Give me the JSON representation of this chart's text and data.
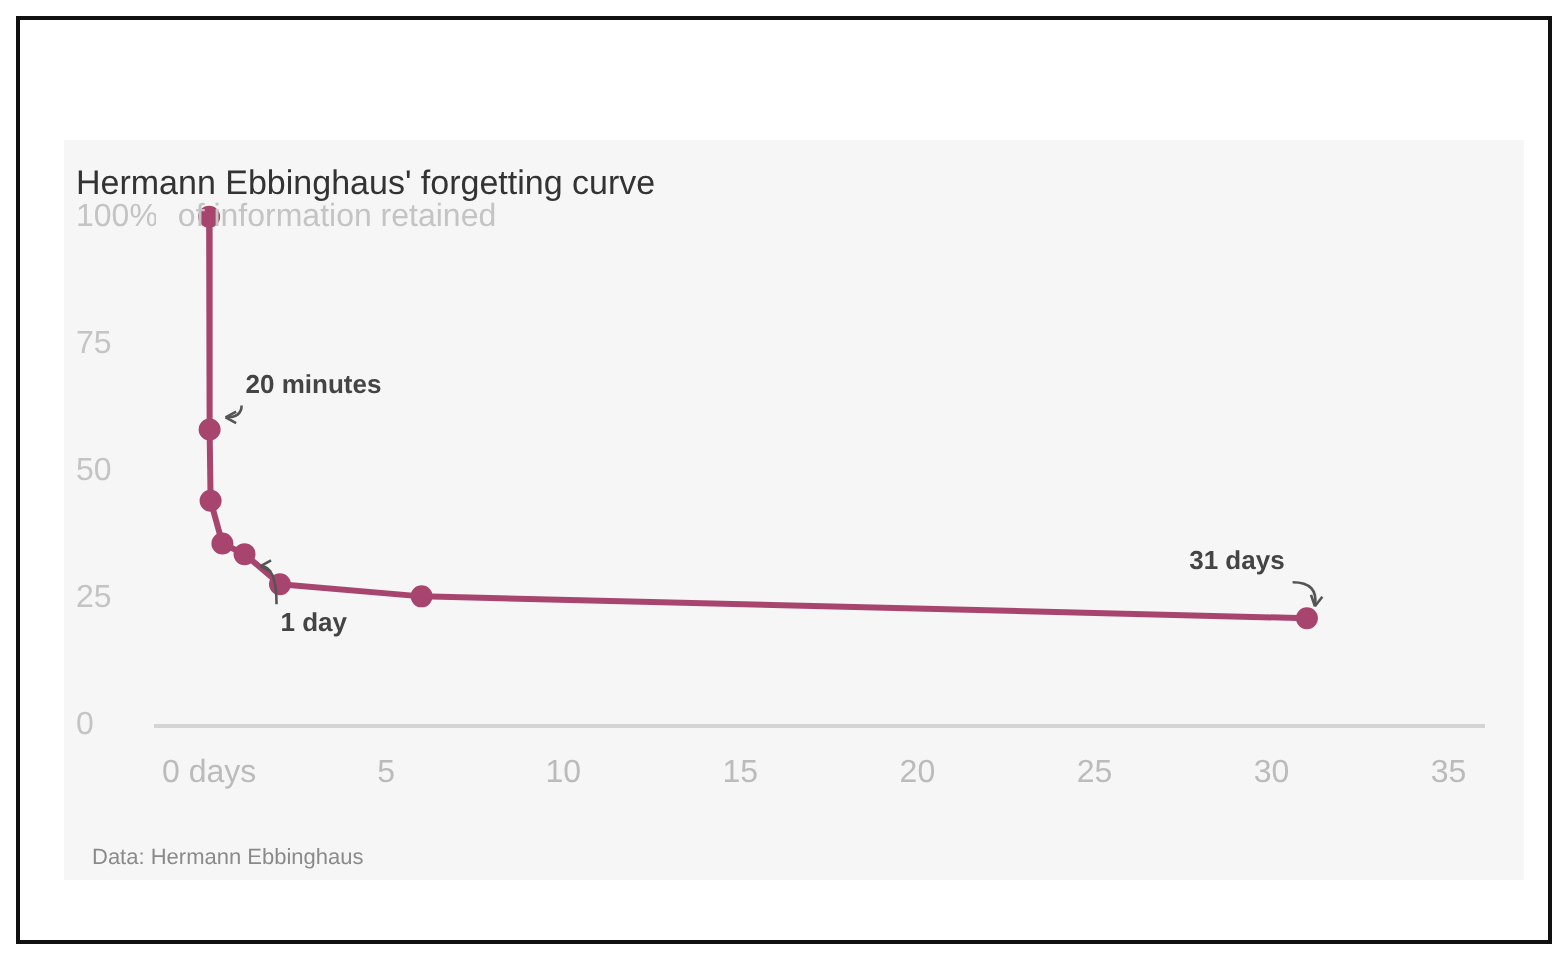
{
  "chart_data": {
    "type": "line",
    "title": "Hermann Ebbinghaus' forgetting curve",
    "ylabel": "of information retained",
    "x": [
      0,
      0.0139,
      0.0417,
      0.375,
      1,
      2,
      6,
      31
    ],
    "series": [
      {
        "color": "#a8456f",
        "values": [
          100,
          58.2,
          44.2,
          35.8,
          33.7,
          27.8,
          25.4,
          21.1
        ]
      }
    ],
    "xlim": [
      -1.5,
      36
    ],
    "xticks": [
      {
        "value": 0,
        "label": "0 days"
      },
      5,
      10,
      15,
      20,
      25,
      30,
      35
    ],
    "ylim": [
      0,
      100
    ],
    "yticks": [
      0,
      25,
      50,
      75,
      {
        "value": 100,
        "label": "100%"
      }
    ],
    "grid": false,
    "legend": false,
    "marker": "circle",
    "line_style": "solid",
    "annotations": [
      {
        "text": "20 minutes",
        "x": 0.0139,
        "y": 58.2
      },
      {
        "text": "1 day",
        "x": 1,
        "y": 33.7
      },
      {
        "text": "31 days",
        "x": 31,
        "y": 21.1
      },
      "Data: Hermann Ebbinghaus"
    ]
  }
}
